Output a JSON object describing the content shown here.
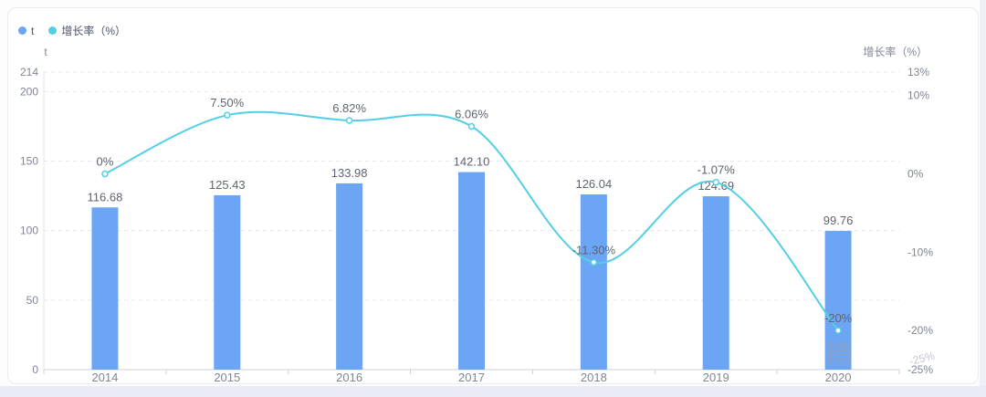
{
  "legend": {
    "items": [
      {
        "label": "t",
        "color": "#6ca5f4"
      },
      {
        "label": "增长率（%）",
        "color": "#53cfe4"
      }
    ]
  },
  "chart_data": {
    "type": "combo",
    "title": "",
    "categories": [
      "2014",
      "2015",
      "2016",
      "2017",
      "2018",
      "2019",
      "2020"
    ],
    "series": [
      {
        "name": "t",
        "type": "bar",
        "color": "#6ca5f4",
        "values": [
          116.68,
          125.43,
          133.98,
          142.1,
          126.04,
          124.69,
          99.76
        ],
        "data_labels": [
          "116.68",
          "125.43",
          "133.98",
          "142.10",
          "126.04",
          "124.69",
          "99.76"
        ]
      },
      {
        "name": "增长率（%）",
        "type": "line",
        "smooth": true,
        "color": "#53cfe4",
        "values": [
          0,
          7.5,
          6.82,
          6.06,
          -11.3,
          -1.07,
          -20
        ],
        "data_labels": [
          "0%",
          "7.50%",
          "6.82%",
          "6.06%",
          "-11.30%",
          "-1.07%",
          "-20%"
        ]
      }
    ],
    "left_axis": {
      "title": "t",
      "min": 0,
      "max": 214,
      "ticks": [
        0,
        50,
        100,
        150,
        200,
        214
      ],
      "tick_labels": [
        "0",
        "50",
        "100",
        "150",
        "200",
        "214"
      ]
    },
    "right_axis": {
      "title": "增长率（%）",
      "min": -25,
      "max": 13,
      "ticks": [
        -25,
        -20,
        -10,
        0,
        10,
        13
      ],
      "tick_labels": [
        "-25%",
        "-20%",
        "-10%",
        "0%",
        "10%",
        "13%"
      ]
    },
    "grid": {
      "horizontal_dashed": true
    },
    "legend_position": "top-left"
  },
  "artifacts": {
    "watermark_on_2020_bar": "精",
    "overlapping_label_bottom_right": "-25%"
  },
  "colors": {
    "bar": "#6ca5f4",
    "line": "#53cfe4",
    "grid": "#e5e8f4",
    "axis_line": "#ccd0dc",
    "tick_text": "#7f8694",
    "data_label": "#5e6470",
    "watermark": "#98a0ac",
    "page_bottom_strip": "#e9ebf5",
    "card_border": "#e9ebf2"
  }
}
